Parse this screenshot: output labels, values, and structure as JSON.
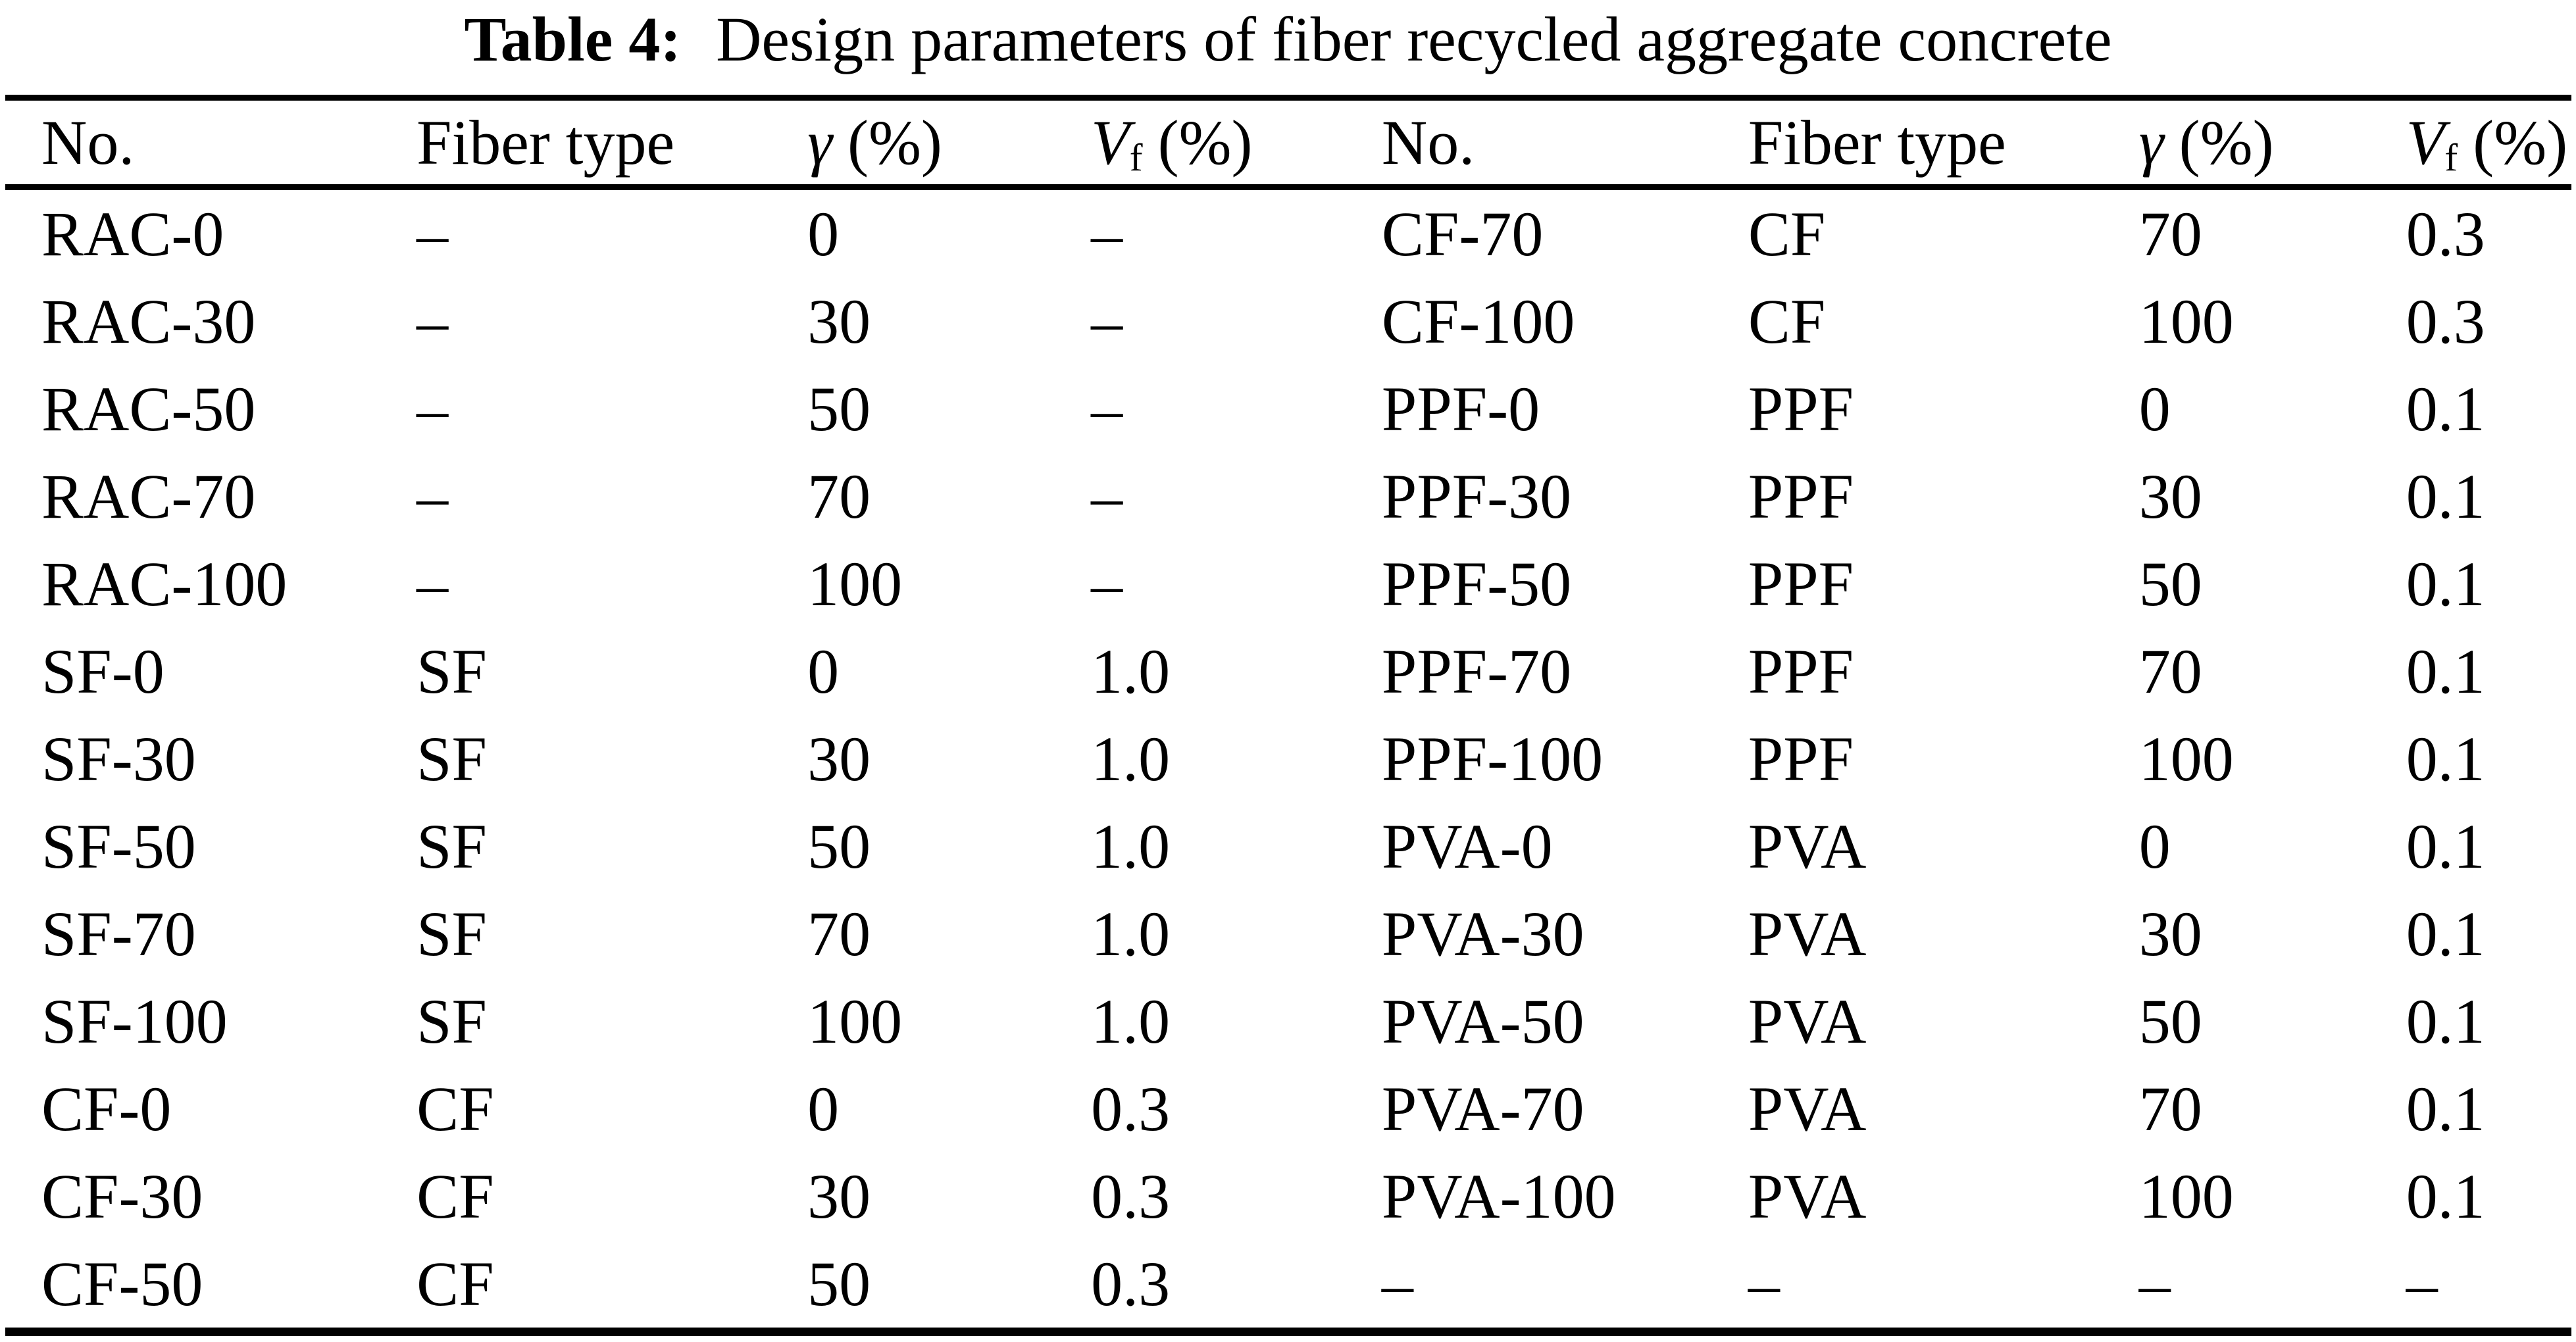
{
  "caption": {
    "label": "Table 4:",
    "text": "Design parameters of fiber recycled aggregate concrete"
  },
  "colors": {
    "text": "#000000",
    "background": "#ffffff",
    "rule": "#000000"
  },
  "table": {
    "headers": {
      "no": "No.",
      "fiber_type": "Fiber type",
      "gamma_symbol": "γ",
      "gamma_unit": "(%)",
      "vf_symbol": "V",
      "vf_subscript": "f",
      "vf_unit": "(%)"
    },
    "rows": [
      {
        "left": [
          "RAC-0",
          "–",
          "0",
          "–"
        ],
        "right": [
          "CF-70",
          "CF",
          "70",
          "0.3"
        ]
      },
      {
        "left": [
          "RAC-30",
          "–",
          "30",
          "–"
        ],
        "right": [
          "CF-100",
          "CF",
          "100",
          "0.3"
        ]
      },
      {
        "left": [
          "RAC-50",
          "–",
          "50",
          "–"
        ],
        "right": [
          "PPF-0",
          "PPF",
          "0",
          "0.1"
        ]
      },
      {
        "left": [
          "RAC-70",
          "–",
          "70",
          "–"
        ],
        "right": [
          "PPF-30",
          "PPF",
          "30",
          "0.1"
        ]
      },
      {
        "left": [
          "RAC-100",
          "–",
          "100",
          "–"
        ],
        "right": [
          "PPF-50",
          "PPF",
          "50",
          "0.1"
        ]
      },
      {
        "left": [
          "SF-0",
          "SF",
          "0",
          "1.0"
        ],
        "right": [
          "PPF-70",
          "PPF",
          "70",
          "0.1"
        ]
      },
      {
        "left": [
          "SF-30",
          "SF",
          "30",
          "1.0"
        ],
        "right": [
          "PPF-100",
          "PPF",
          "100",
          "0.1"
        ]
      },
      {
        "left": [
          "SF-50",
          "SF",
          "50",
          "1.0"
        ],
        "right": [
          "PVA-0",
          "PVA",
          "0",
          "0.1"
        ]
      },
      {
        "left": [
          "SF-70",
          "SF",
          "70",
          "1.0"
        ],
        "right": [
          "PVA-30",
          "PVA",
          "30",
          "0.1"
        ]
      },
      {
        "left": [
          "SF-100",
          "SF",
          "100",
          "1.0"
        ],
        "right": [
          "PVA-50",
          "PVA",
          "50",
          "0.1"
        ]
      },
      {
        "left": [
          "CF-0",
          "CF",
          "0",
          "0.3"
        ],
        "right": [
          "PVA-70",
          "PVA",
          "70",
          "0.1"
        ]
      },
      {
        "left": [
          "CF-30",
          "CF",
          "30",
          "0.3"
        ],
        "right": [
          "PVA-100",
          "PVA",
          "100",
          "0.1"
        ]
      },
      {
        "left": [
          "CF-50",
          "CF",
          "50",
          "0.3"
        ],
        "right": [
          "–",
          "–",
          "–",
          "–"
        ]
      }
    ]
  }
}
